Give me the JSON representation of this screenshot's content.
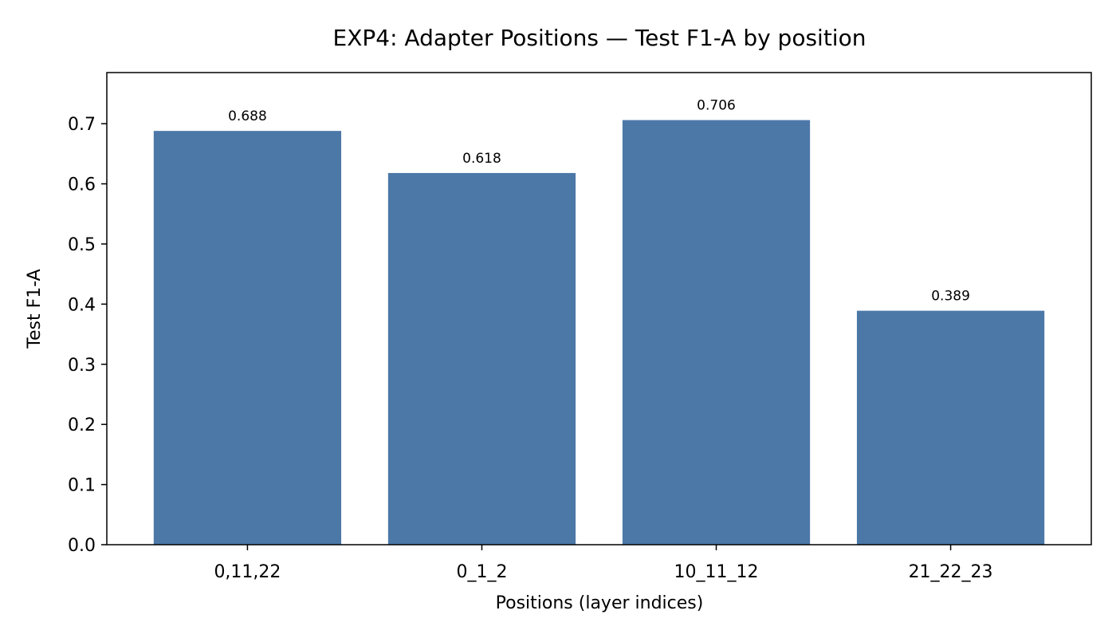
{
  "chart_data": {
    "type": "bar",
    "title": "EXP4: Adapter Positions — Test F1-A by position",
    "xlabel": "Positions (layer indices)",
    "ylabel": "Test F1-A",
    "categories": [
      "0,11,22",
      "0_1_2",
      "10_11_12",
      "21_22_23"
    ],
    "values": [
      0.688,
      0.618,
      0.706,
      0.389
    ],
    "value_labels": [
      "0.688",
      "0.618",
      "0.706",
      "0.389"
    ],
    "yticks": [
      "0.0",
      "0.1",
      "0.2",
      "0.3",
      "0.4",
      "0.5",
      "0.6",
      "0.7"
    ],
    "ylim": [
      0,
      0.785
    ],
    "grid": false,
    "legend": "none",
    "bar_color": "#4c78a8"
  }
}
